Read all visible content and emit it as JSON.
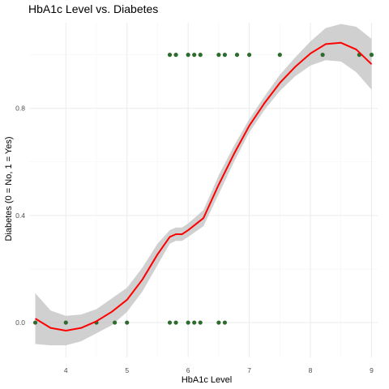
{
  "chart_data": {
    "type": "scatter",
    "title": "HbA1c Level vs. Diabetes",
    "xlabel": "HbA1c Level",
    "ylabel": "Diabetes (0 = No, 1 = Yes)",
    "xlim": [
      3.4,
      9.1
    ],
    "ylim": [
      -0.13,
      1.12
    ],
    "x_ticks": [
      4,
      5,
      6,
      7,
      8,
      9
    ],
    "x_tick_labels": [
      "4",
      "5",
      "6",
      "7",
      "8",
      "9"
    ],
    "y_ticks": [
      0.0,
      0.4,
      0.8
    ],
    "y_tick_labels": [
      "0.0",
      "0.4",
      "0.8"
    ],
    "grid": true,
    "colors": {
      "points": "#2e6b2e",
      "smooth_line": "#ff0000",
      "confidence_band": "#c8c8c8"
    },
    "points": [
      {
        "x": 3.5,
        "y": 0
      },
      {
        "x": 4.0,
        "y": 0
      },
      {
        "x": 4.5,
        "y": 0
      },
      {
        "x": 4.8,
        "y": 0
      },
      {
        "x": 5.0,
        "y": 0
      },
      {
        "x": 5.7,
        "y": 0
      },
      {
        "x": 5.8,
        "y": 0
      },
      {
        "x": 6.0,
        "y": 0
      },
      {
        "x": 6.1,
        "y": 0
      },
      {
        "x": 6.2,
        "y": 0
      },
      {
        "x": 6.5,
        "y": 0
      },
      {
        "x": 6.6,
        "y": 0
      },
      {
        "x": 5.7,
        "y": 1
      },
      {
        "x": 5.8,
        "y": 1
      },
      {
        "x": 6.0,
        "y": 1
      },
      {
        "x": 6.1,
        "y": 1
      },
      {
        "x": 6.2,
        "y": 1
      },
      {
        "x": 6.5,
        "y": 1
      },
      {
        "x": 6.6,
        "y": 1
      },
      {
        "x": 6.8,
        "y": 1
      },
      {
        "x": 7.0,
        "y": 1
      },
      {
        "x": 7.5,
        "y": 1
      },
      {
        "x": 8.2,
        "y": 1
      },
      {
        "x": 8.8,
        "y": 1
      },
      {
        "x": 9.0,
        "y": 1
      }
    ],
    "smooth": {
      "x": [
        3.5,
        3.75,
        4.0,
        4.25,
        4.5,
        4.75,
        5.0,
        5.25,
        5.5,
        5.7,
        5.8,
        5.9,
        6.0,
        6.25,
        6.5,
        6.75,
        7.0,
        7.25,
        7.5,
        7.75,
        8.0,
        8.25,
        8.5,
        8.75,
        9.0
      ],
      "y": [
        0.015,
        -0.02,
        -0.03,
        -0.02,
        0.005,
        0.04,
        0.085,
        0.16,
        0.255,
        0.32,
        0.33,
        0.33,
        0.345,
        0.39,
        0.515,
        0.63,
        0.735,
        0.82,
        0.895,
        0.955,
        1.005,
        1.04,
        1.045,
        1.02,
        0.965
      ],
      "lower": [
        -0.08,
        -0.085,
        -0.085,
        -0.07,
        -0.04,
        -0.01,
        0.04,
        0.115,
        0.215,
        0.295,
        0.305,
        0.305,
        0.32,
        0.36,
        0.48,
        0.6,
        0.71,
        0.795,
        0.865,
        0.92,
        0.96,
        0.98,
        0.975,
        0.935,
        0.87
      ],
      "upper": [
        0.11,
        0.045,
        0.025,
        0.03,
        0.05,
        0.09,
        0.13,
        0.205,
        0.295,
        0.345,
        0.355,
        0.355,
        0.37,
        0.42,
        0.55,
        0.66,
        0.76,
        0.845,
        0.925,
        0.99,
        1.05,
        1.1,
        1.115,
        1.105,
        1.06
      ]
    }
  }
}
